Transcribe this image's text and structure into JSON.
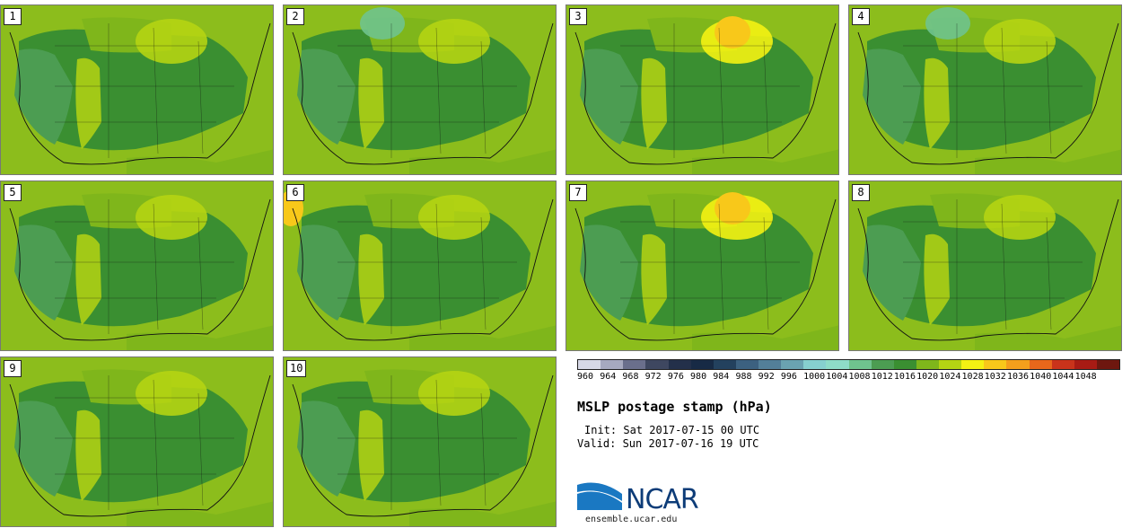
{
  "panels": [
    {
      "label": "1",
      "variant": "base"
    },
    {
      "label": "2",
      "variant": "cool"
    },
    {
      "label": "3",
      "variant": "high"
    },
    {
      "label": "4",
      "variant": "cool"
    },
    {
      "label": "5",
      "variant": "base"
    },
    {
      "label": "6",
      "variant": "mid"
    },
    {
      "label": "7",
      "variant": "high"
    },
    {
      "label": "8",
      "variant": "base"
    },
    {
      "label": "9",
      "variant": "base"
    },
    {
      "label": "10",
      "variant": "base"
    }
  ],
  "colorbar": {
    "labels": [
      "960",
      "964",
      "968",
      "972",
      "976",
      "980",
      "984",
      "988",
      "992",
      "996",
      "1000",
      "1004",
      "1008",
      "1012",
      "1016",
      "1020",
      "1024",
      "1028",
      "1032",
      "1036",
      "1040",
      "1044",
      "1048"
    ],
    "colors": [
      "#d6d8e6",
      "#a6a9bf",
      "#6a6f8c",
      "#3e4760",
      "#23304a",
      "#172a45",
      "#23415e",
      "#3c6180",
      "#537f99",
      "#6aa3b1",
      "#86d0cf",
      "#8edcc8",
      "#6fc38e",
      "#4c9d52",
      "#3a8f31",
      "#7fb61b",
      "#b5d413",
      "#f4f213",
      "#f8c81a",
      "#f49f1c",
      "#e8671b",
      "#c9331b",
      "#a81b14",
      "#6e170f"
    ]
  },
  "title": "MSLP postage stamp (hPa)",
  "init_text": "Init: Sat 2017-07-15 00 UTC",
  "valid_text": "Valid: Sun 2017-07-16 19 UTC",
  "logo": {
    "text": "NCAR",
    "site": "ensemble.ucar.edu",
    "color": "#0d3c78",
    "swoosh": "#1a78c2"
  }
}
